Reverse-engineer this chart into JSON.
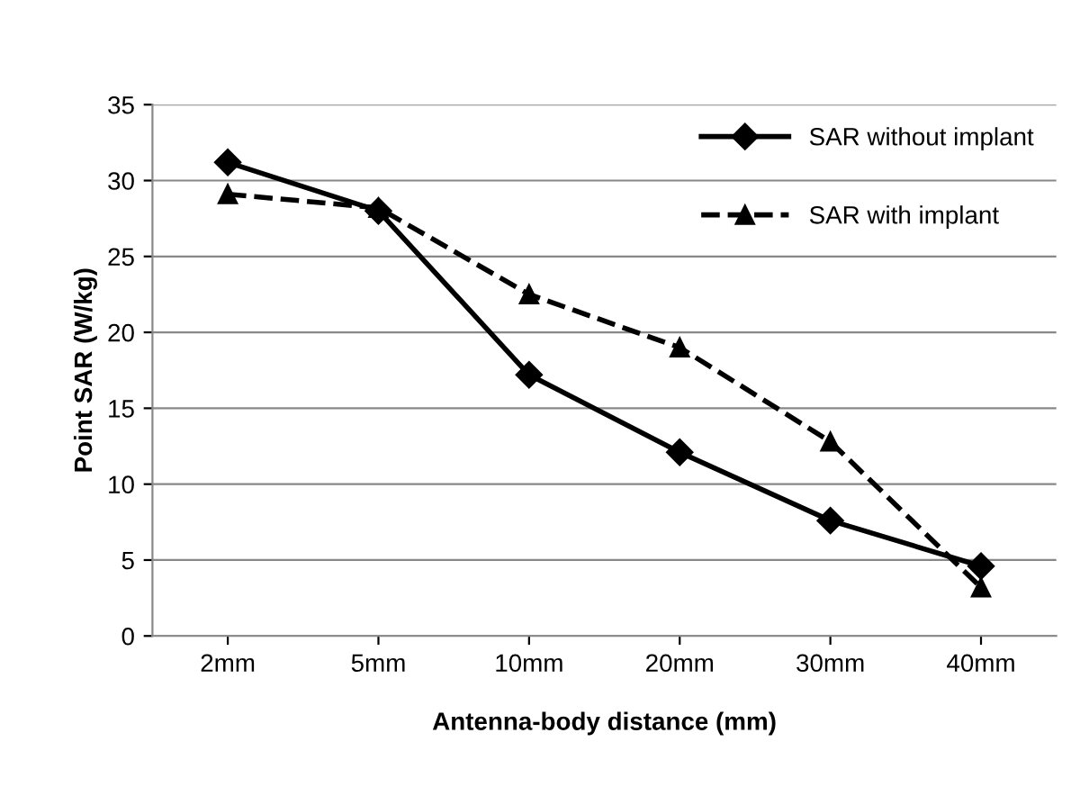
{
  "chart_data": {
    "type": "line",
    "xlabel": "Antenna-body distance (mm)",
    "ylabel": "Point SAR (W/kg)",
    "categories": [
      "2mm",
      "5mm",
      "10mm",
      "20mm",
      "30mm",
      "40mm"
    ],
    "series": [
      {
        "name": "SAR without implant",
        "color": "#000000",
        "marker": "diamond",
        "line_style": "solid",
        "values": [
          31.2,
          28.0,
          17.2,
          12.1,
          7.6,
          4.6
        ]
      },
      {
        "name": "SAR with implant",
        "color": "#000000",
        "marker": "triangle",
        "line_style": "dashed",
        "values": [
          29.1,
          28.2,
          22.5,
          19.0,
          12.8,
          3.2
        ]
      }
    ],
    "ylim": [
      0,
      35
    ],
    "yticks": [
      0,
      5,
      10,
      15,
      20,
      25,
      30,
      35
    ],
    "grid": "y",
    "legend": "top right"
  }
}
